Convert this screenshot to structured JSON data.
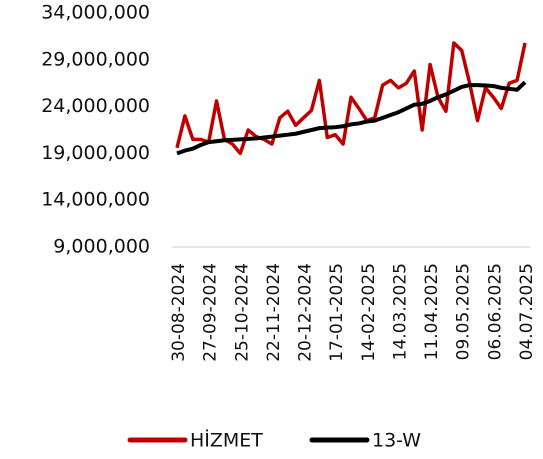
{
  "chart_data": {
    "type": "line",
    "categories": [
      "30-08-2024",
      null,
      null,
      null,
      "27-09-2024",
      null,
      null,
      null,
      "25-10-2024",
      null,
      null,
      null,
      "22-11-2024",
      null,
      null,
      null,
      "20-12-2024",
      null,
      null,
      null,
      "17-01-2025",
      null,
      null,
      null,
      "14-02-2025",
      null,
      null,
      null,
      "14.03.2025",
      null,
      null,
      null,
      "11.04.2025",
      null,
      null,
      null,
      "09.05.2025",
      null,
      null,
      null,
      "06.06.2025",
      null,
      null,
      null,
      "04.07.2025"
    ],
    "series": [
      {
        "name": "HİZMET",
        "color": "#c00000",
        "values": [
          19600000,
          23000000,
          20500000,
          20500000,
          20200000,
          24600000,
          20500000,
          20000000,
          19000000,
          21500000,
          20800000,
          20500000,
          20000000,
          22800000,
          23500000,
          22000000,
          22800000,
          23600000,
          26800000,
          20700000,
          21000000,
          20000000,
          25000000,
          23800000,
          22500000,
          22800000,
          26300000,
          26800000,
          26000000,
          26500000,
          27800000,
          21500000,
          28500000,
          25000000,
          23500000,
          30800000,
          30000000,
          26500000,
          22500000,
          26000000,
          25000000,
          23800000,
          26500000,
          26800000,
          30800000
        ]
      },
      {
        "name": "13-W",
        "color": "#000000",
        "values": [
          19000000,
          19300000,
          19500000,
          19900000,
          20200000,
          20300000,
          20400000,
          20450000,
          20500000,
          20550000,
          20600000,
          20700000,
          20800000,
          20900000,
          21000000,
          21100000,
          21300000,
          21500000,
          21700000,
          21750000,
          21800000,
          21900000,
          22100000,
          22200000,
          22400000,
          22500000,
          22800000,
          23100000,
          23400000,
          23800000,
          24200000,
          24300000,
          24600000,
          25000000,
          25300000,
          25700000,
          26100000,
          26300000,
          26300000,
          26250000,
          26200000,
          26000000,
          25900000,
          25800000,
          26600000
        ]
      }
    ],
    "ylim": [
      9000000,
      34000000
    ],
    "yticks": [
      {
        "value": 9000000,
        "label": "9,000,000"
      },
      {
        "value": 14000000,
        "label": "14,000,000"
      },
      {
        "value": 19000000,
        "label": "19,000,000"
      },
      {
        "value": 24000000,
        "label": "24,000,000"
      },
      {
        "value": 29000000,
        "label": "29,000,000"
      },
      {
        "value": 34000000,
        "label": "34,000,000"
      }
    ],
    "grid": false,
    "legend": "bottom"
  }
}
